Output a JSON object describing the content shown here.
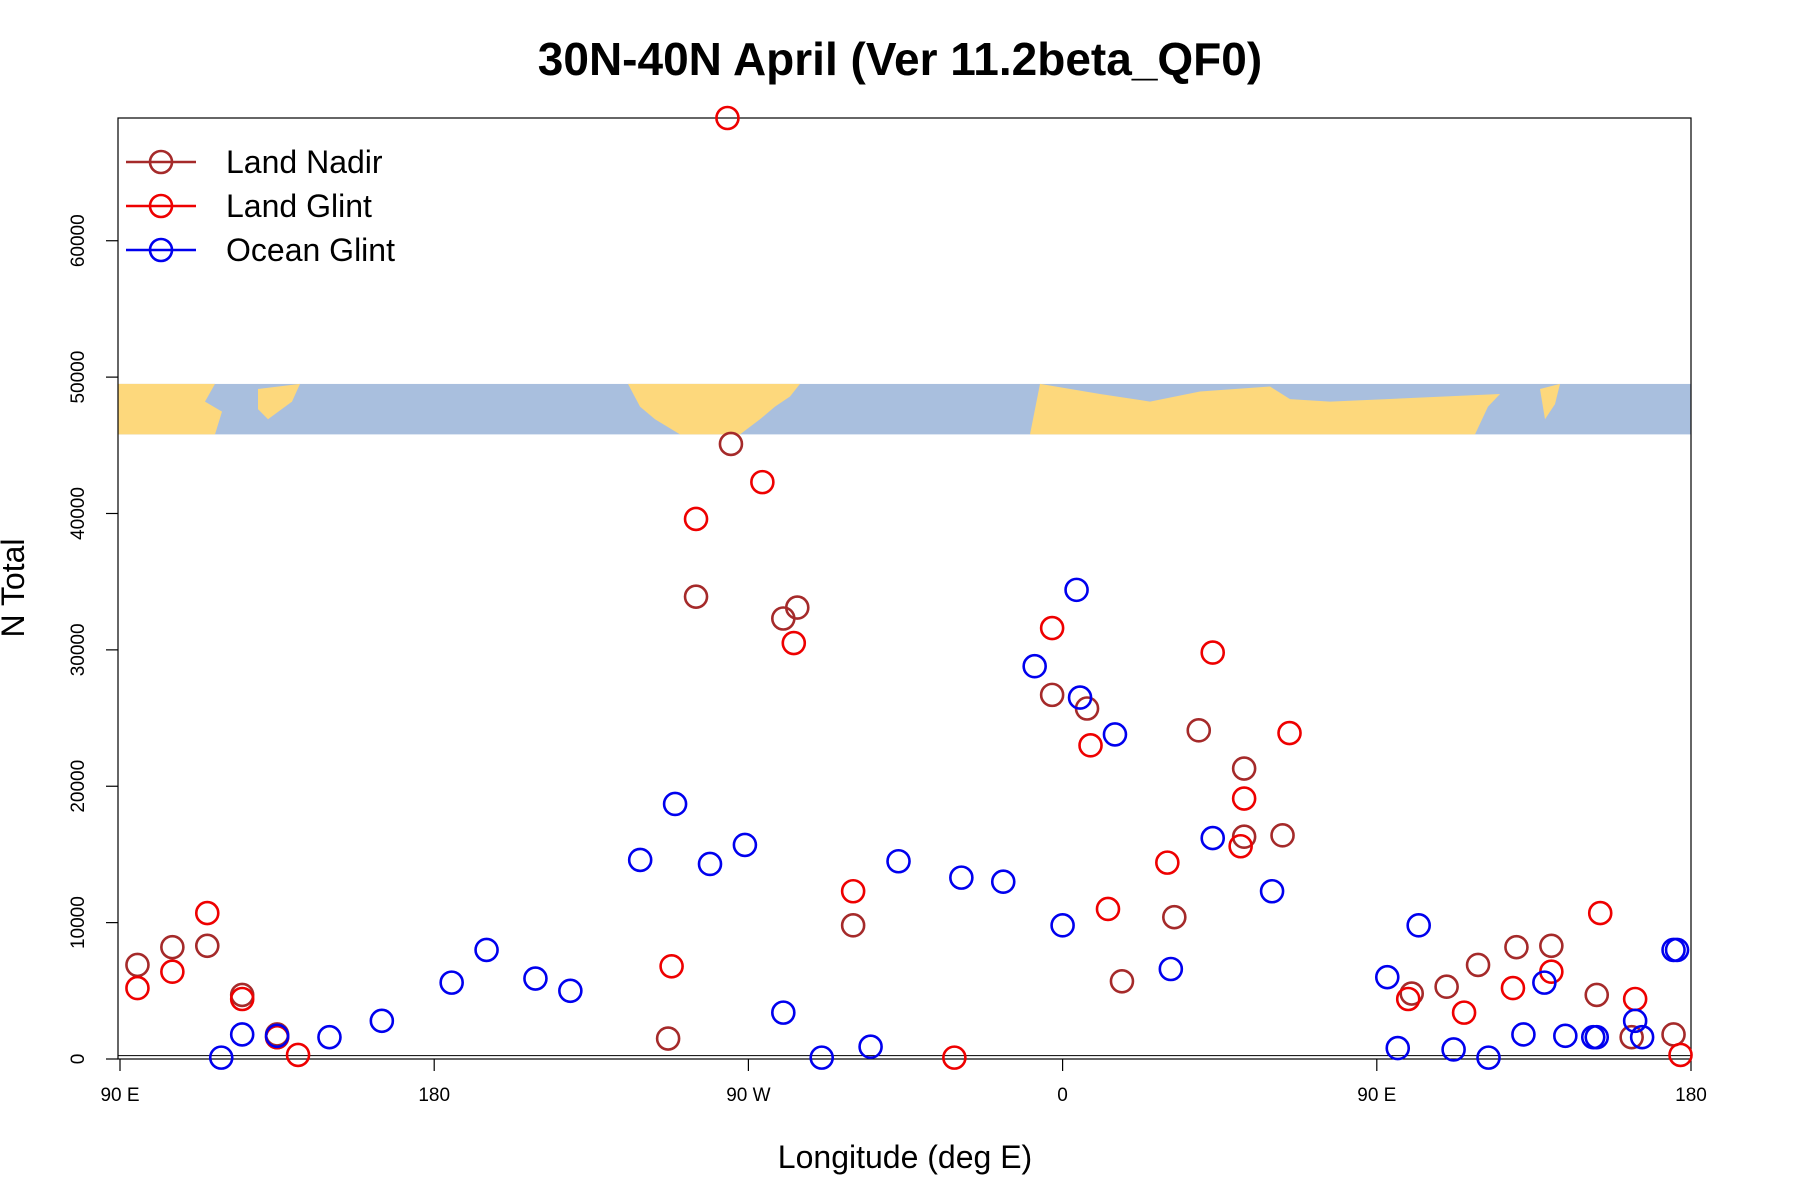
{
  "chart_data": {
    "type": "scatter",
    "title": "30N-40N April (Ver 11.2beta_QF0)",
    "xlabel": "Longitude (deg E)",
    "ylabel": "N Total",
    "xlim": [
      90,
      540
    ],
    "ylim": [
      0,
      69000
    ],
    "x_tick_values": [
      90,
      180,
      270,
      360,
      450,
      540
    ],
    "x_tick_labels": [
      "90 E",
      "180",
      "90 W",
      "0",
      "90 E",
      "180"
    ],
    "y_tick_values": [
      0,
      10000,
      20000,
      30000,
      40000,
      50000,
      60000
    ],
    "y_tick_labels": [
      "0",
      "10000",
      "20000",
      "30000",
      "40000",
      "50000",
      "60000"
    ],
    "reference_lines_y": [
      0,
      250
    ],
    "legend_position": "top-left",
    "map_band": {
      "y_range": [
        45800,
        49500
      ],
      "land_color": "#fdd87c",
      "ocean_color": "#a9bfde"
    },
    "series": [
      {
        "name": "Land Nadir",
        "color": "#a52a2a",
        "x": [
          95,
          105,
          115,
          125,
          135,
          135,
          247,
          255,
          265,
          280,
          284,
          300,
          357,
          367,
          377,
          399,
          392,
          412,
          412,
          423,
          460,
          470,
          479,
          490,
          500,
          513,
          523,
          535
        ],
        "y": [
          6900,
          8200,
          8300,
          4700,
          1600,
          1800,
          1500,
          33900,
          45100,
          32300,
          33100,
          9800,
          26700,
          25700,
          5700,
          24100,
          10400,
          21300,
          16300,
          16400,
          4800,
          5300,
          6900,
          8200,
          8300,
          4700,
          1600,
          1800
        ]
      },
      {
        "name": "Land Glint",
        "color": "#ee0000",
        "x": [
          95,
          105,
          115,
          125,
          135,
          141,
          248,
          255,
          264,
          274,
          283,
          300,
          329,
          357,
          368,
          403,
          390,
          412,
          411,
          425,
          459,
          475,
          489,
          500,
          514,
          524,
          537
        ],
        "y": [
          5200,
          6400,
          10700,
          4400,
          1600,
          300,
          6800,
          39600,
          69000,
          42300,
          30500,
          12300,
          100,
          31600,
          23000,
          29800,
          14400,
          19100,
          15600,
          23900,
          4400,
          3400,
          5200,
          6400,
          10700,
          4400,
          300
        ],
        "extra": {
          "x": [
            373
          ],
          "y": [
            11000
          ]
        }
      },
      {
        "name": "Ocean Glint",
        "color": "#0000ee",
        "x": [
          119,
          125,
          135,
          150,
          165,
          185,
          195,
          209,
          219,
          239,
          249,
          259,
          269,
          280,
          291,
          305,
          313,
          331,
          343,
          352,
          364,
          365,
          375,
          391,
          403,
          420,
          453,
          456,
          462,
          472,
          482,
          492,
          504,
          512,
          524,
          535
        ],
        "y": [
          100,
          1800,
          1700,
          1600,
          2800,
          5600,
          8000,
          5900,
          5000,
          14600,
          18700,
          14300,
          15700,
          3400,
          100,
          900,
          14500,
          13300,
          13000,
          28800,
          34400,
          26500,
          23800,
          6600,
          16200,
          12300,
          6000,
          800,
          9800,
          700,
          100,
          1800,
          1700,
          1600,
          2800,
          8000
        ],
        "extra": {
          "x": [
            360,
            498,
            513,
            526,
            536
          ],
          "y": [
            9800,
            5600,
            1600,
            1600,
            8000
          ]
        }
      }
    ]
  }
}
